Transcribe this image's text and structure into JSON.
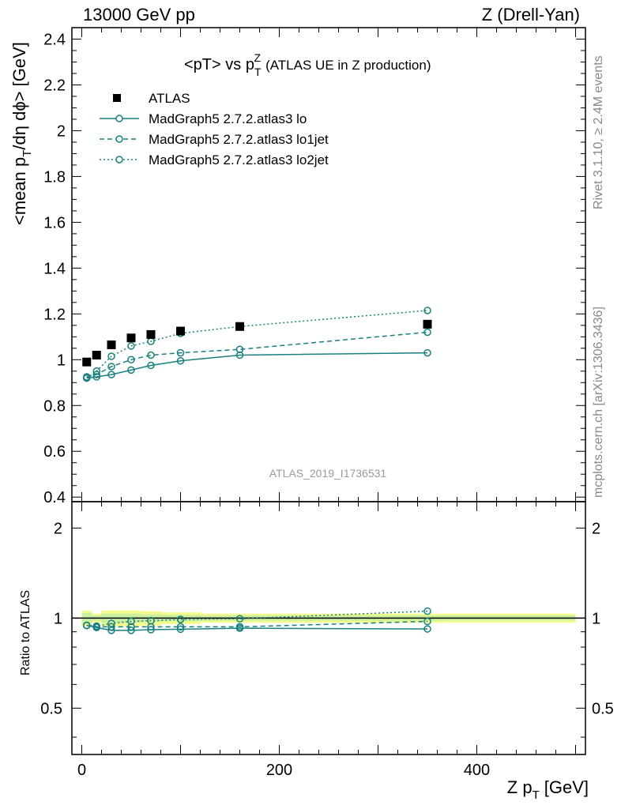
{
  "header": {
    "left": "13000 GeV pp",
    "right": "Z (Drell-Yan)"
  },
  "side": {
    "rivet": "Rivet 3.1.10, ≥ 2.4M events",
    "mcplots": "mcplots.cern.ch [arXiv:1306.3436]"
  },
  "colors": {
    "atlas": "#000000",
    "mc": "#1a7f7f",
    "band_yellow": "#f4fb8c",
    "band_green": "#c8f0a0"
  },
  "chart_data": {
    "type": "line",
    "title_main": "<pT> vs p",
    "title_sup": "Z",
    "title_sub": "T",
    "title_rest": "(ATLAS UE in Z production)",
    "analysis_label": "ATLAS_2019_I1736531",
    "ylabel_pre": "<mean p",
    "ylabel_sub": "T",
    "ylabel_post": "/dη dϕ> [GeV]",
    "xlabel_pre": "Z p",
    "xlabel_sub": "T",
    "xlabel_post": "[GeV]",
    "ratio_ylabel": "Ratio to ATLAS",
    "xlim": [
      -10,
      510
    ],
    "ylim": [
      0.38,
      2.45
    ],
    "ratio_ylim": [
      0.38,
      2.45
    ],
    "x_ticks": [
      "0",
      "200",
      "400"
    ],
    "y_ticks": [
      "0.4",
      "0.6",
      "0.8",
      "1",
      "1.2",
      "1.4",
      "1.6",
      "1.8",
      "2",
      "2.2",
      "2.4"
    ],
    "ratio_ticks": [
      "0.5",
      "1",
      "2"
    ],
    "legend_position": "top-left",
    "x": [
      5,
      15,
      30,
      50,
      70,
      100,
      160,
      350
    ],
    "data": {
      "name": "ATLAS",
      "values": [
        0.99,
        1.02,
        1.065,
        1.095,
        1.11,
        1.125,
        1.145,
        1.155
      ]
    },
    "series": [
      {
        "name": "MadGraph5 2.7.2.atlas3 lo",
        "dash": "solid",
        "values": [
          0.92,
          0.925,
          0.935,
          0.955,
          0.975,
          0.995,
          1.02,
          1.03
        ],
        "ratio": [
          0.945,
          0.93,
          0.91,
          0.91,
          0.915,
          0.918,
          0.925,
          0.92
        ]
      },
      {
        "name": "MadGraph5 2.7.2.atlas3 lo1jet",
        "dash": "dashed",
        "values": [
          0.925,
          0.935,
          0.97,
          1.0,
          1.02,
          1.03,
          1.045,
          1.12
        ],
        "ratio": [
          0.945,
          0.935,
          0.935,
          0.935,
          0.935,
          0.935,
          0.935,
          0.975
        ]
      },
      {
        "name": "MadGraph5 2.7.2.atlas3 lo2jet",
        "dash": "dotted",
        "values": [
          0.92,
          0.95,
          1.015,
          1.06,
          1.08,
          1.115,
          1.145,
          1.215
        ],
        "ratio": [
          0.945,
          0.94,
          0.96,
          0.975,
          0.98,
          0.99,
          0.995,
          1.055
        ]
      }
    ],
    "ratio_band": {
      "x_lo": [
        0,
        10,
        20,
        40,
        60,
        80,
        120,
        200
      ],
      "x_hi": [
        10,
        20,
        40,
        60,
        80,
        120,
        200,
        500
      ],
      "yellow": [
        0.06,
        0.035,
        0.06,
        0.06,
        0.055,
        0.045,
        0.035,
        0.035
      ],
      "green": [
        0.04,
        0.02,
        0.035,
        0.035,
        0.03,
        0.025,
        0.02,
        0.02
      ]
    }
  }
}
